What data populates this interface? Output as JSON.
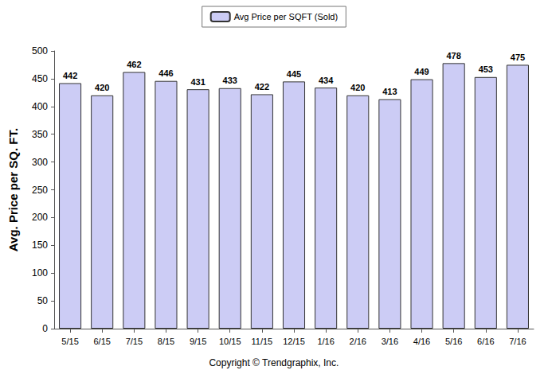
{
  "chart_data": {
    "type": "bar",
    "categories": [
      "5/15",
      "6/15",
      "7/15",
      "8/15",
      "9/15",
      "10/15",
      "11/15",
      "12/15",
      "1/16",
      "2/16",
      "3/16",
      "4/16",
      "5/16",
      "6/16",
      "7/16"
    ],
    "series": [
      {
        "name": "Avg Price per SQFT (Sold)",
        "color": "#ccccf5",
        "values": [
          442,
          420,
          462,
          446,
          431,
          433,
          422,
          445,
          434,
          420,
          413,
          449,
          478,
          453,
          475
        ]
      }
    ],
    "y_label": "Avg. Price per SQ. FT.",
    "annotation": "Copyright © Trendgraphix, Inc.",
    "ylim": [
      0,
      500
    ],
    "yticks": [
      0,
      50,
      100,
      150,
      200,
      250,
      300,
      350,
      400,
      450,
      500
    ],
    "grid": false,
    "legend": "top",
    "data_labels": true
  }
}
